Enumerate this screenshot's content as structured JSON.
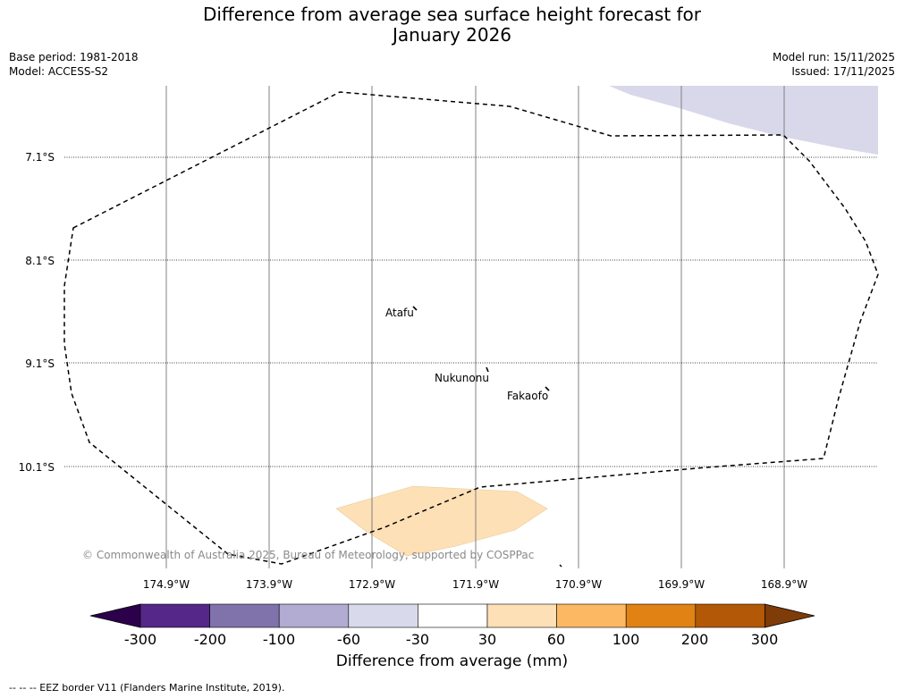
{
  "title": {
    "line1": "Difference from average sea surface height forecast for",
    "line2": "January 2026"
  },
  "meta": {
    "base_period": "Base period: 1981-2018",
    "model": "Model: ACCESS-S2",
    "model_run": "Model run: 15/11/2025",
    "issued": "Issued: 17/11/2025"
  },
  "map": {
    "lat_labels": [
      "7.1°S",
      "8.1°S",
      "9.1°S",
      "10.1°S"
    ],
    "lon_labels": [
      "174.9°W",
      "173.9°W",
      "172.9°W",
      "171.9°W",
      "170.9°W",
      "169.9°W",
      "168.9°W"
    ],
    "places": [
      {
        "name": "Atafu"
      },
      {
        "name": "Nukunonu"
      },
      {
        "name": "Fakaofo"
      }
    ],
    "copyright": "© Commonwealth of Australia 2025, Bureau of Meteorology, supported by COSPPac",
    "colors": {
      "negative_anomaly_fill": "#d8d8ea",
      "positive_anomaly_fill": "#fee0b6",
      "eez_border": "#000000",
      "grid": "#808080"
    }
  },
  "colorbar": {
    "colors": [
      "#2d004b",
      "#542788",
      "#8073ac",
      "#b2abd2",
      "#d8daeb",
      "#ffffff",
      "#fee0b6",
      "#fdb863",
      "#e08214",
      "#b35806",
      "#7f3b08"
    ],
    "tick_labels": [
      "-300",
      "-200",
      "-100",
      "-60",
      "-30",
      "30",
      "60",
      "100",
      "200",
      "300"
    ],
    "title": "Difference from average (mm)"
  },
  "footnote": "--  --  -- EEZ border V11 (Flanders Marine Institute, 2019)."
}
